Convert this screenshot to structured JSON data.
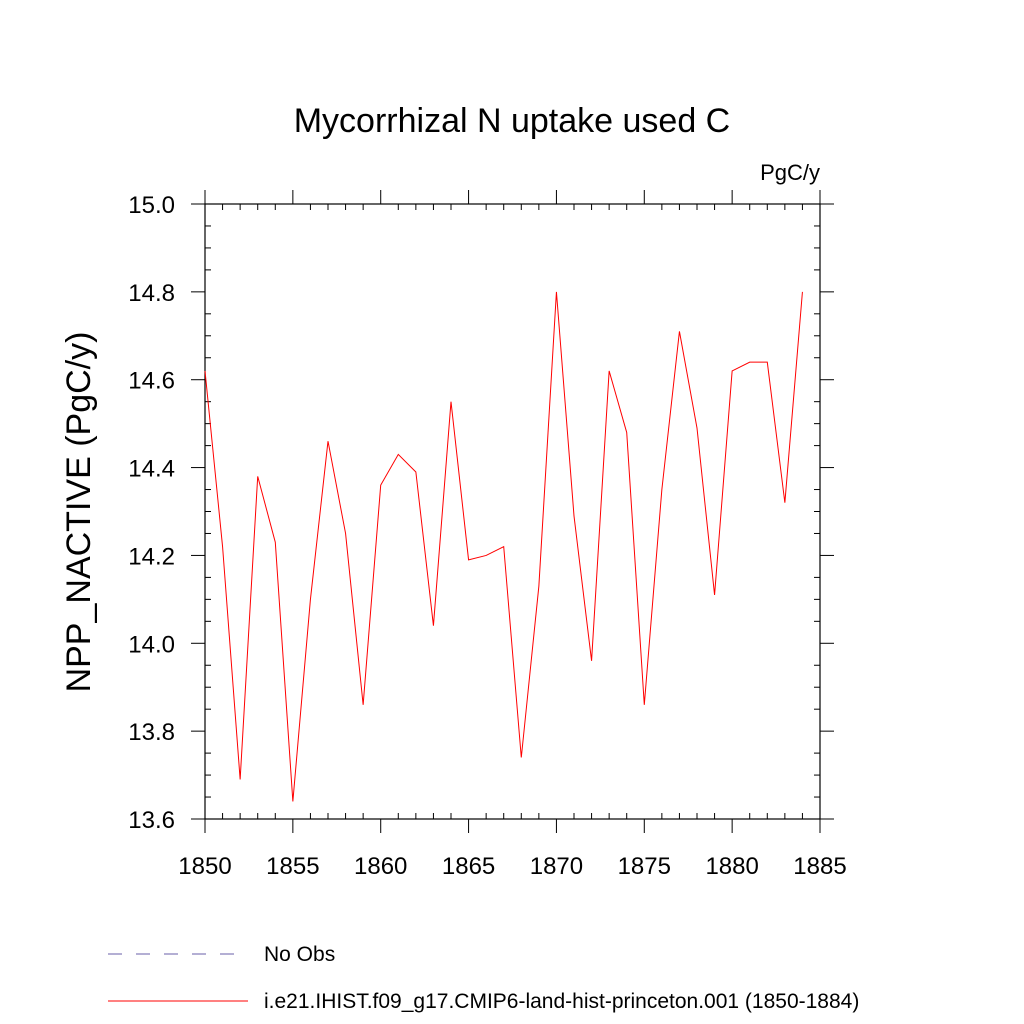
{
  "chart_data": {
    "type": "line",
    "title": "Mycorrhizal N uptake used C",
    "units_label": "PgC/y",
    "ylabel": "NPP_NACTIVE  (PgC/y)",
    "xlabel": "",
    "xlim": [
      1850,
      1885
    ],
    "ylim": [
      13.6,
      15.0
    ],
    "x_ticks": [
      "1850",
      "1855",
      "1860",
      "1865",
      "1870",
      "1875",
      "1880",
      "1885"
    ],
    "y_ticks": [
      "13.6",
      "13.8",
      "14.0",
      "14.2",
      "14.4",
      "14.6",
      "14.8",
      "15.0"
    ],
    "legend_placement": "bottom",
    "series": [
      {
        "name": "No Obs",
        "color": "#6a5fa8",
        "style": "dashed",
        "x": [],
        "values": []
      },
      {
        "name": "i.e21.IHIST.f09_g17.CMIP6-land-hist-princeton.001 (1850-1884)",
        "color": "#ff0000",
        "style": "solid",
        "x": [
          1850,
          1851,
          1852,
          1853,
          1854,
          1855,
          1856,
          1857,
          1858,
          1859,
          1860,
          1861,
          1862,
          1863,
          1864,
          1865,
          1866,
          1867,
          1868,
          1869,
          1870,
          1871,
          1872,
          1873,
          1874,
          1875,
          1876,
          1877,
          1878,
          1879,
          1880,
          1881,
          1882,
          1883,
          1884
        ],
        "values": [
          14.62,
          14.22,
          13.69,
          14.38,
          14.23,
          13.64,
          14.1,
          14.46,
          14.25,
          13.86,
          14.36,
          14.43,
          14.39,
          14.04,
          14.55,
          14.19,
          14.2,
          14.22,
          13.74,
          14.13,
          14.8,
          14.29,
          13.96,
          14.62,
          14.48,
          13.86,
          14.35,
          14.71,
          14.49,
          14.11,
          14.62,
          14.64,
          14.64,
          14.32,
          14.8
        ]
      }
    ]
  }
}
